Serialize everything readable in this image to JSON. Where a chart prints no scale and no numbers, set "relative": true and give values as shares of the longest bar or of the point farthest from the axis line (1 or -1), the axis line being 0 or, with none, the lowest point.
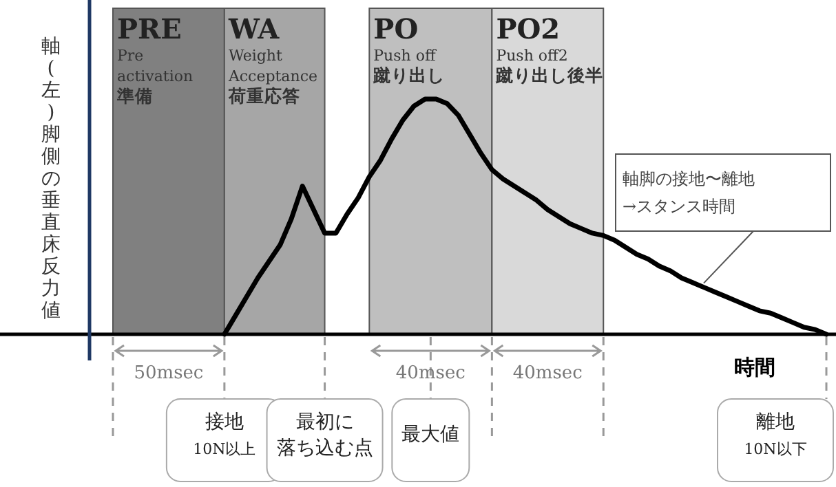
{
  "chart_data": {
    "type": "line",
    "relative": true,
    "ylabel": "軸(左)脚側の垂直床反力値",
    "xlabel": "時間",
    "categories": [
      null,
      null,
      null,
      null,
      null,
      null,
      null,
      null,
      null,
      null,
      null,
      null,
      null,
      null,
      null,
      null,
      null,
      null,
      null,
      null,
      null,
      null,
      null,
      null,
      null,
      null,
      null,
      null,
      null,
      null,
      null,
      null,
      null,
      null,
      null,
      null,
      null,
      null,
      null,
      null,
      null,
      null,
      null,
      null,
      null,
      null,
      null,
      null,
      null,
      null,
      null,
      null,
      null,
      null,
      null,
      null,
      null,
      null,
      null,
      null,
      null,
      null,
      null,
      null,
      null
    ],
    "series": [
      {
        "color": "#000000",
        "values": [
          null,
          null,
          null,
          null,
          null,
          null,
          null,
          null,
          null,
          null,
          0,
          0.08,
          0.16,
          0.24,
          0.31,
          0.38,
          0.49,
          0.63,
          0.53,
          0.43,
          0.43,
          0.51,
          0.58,
          0.67,
          0.74,
          0.83,
          0.91,
          0.97,
          1,
          1,
          0.98,
          0.93,
          0.85,
          0.77,
          0.7,
          0.66,
          0.63,
          0.6,
          0.57,
          0.53,
          0.5,
          0.47,
          0.45,
          0.43,
          0.42,
          0.4,
          0.37,
          0.34,
          0.32,
          0.29,
          0.27,
          0.24,
          0.22,
          0.2,
          0.18,
          0.16,
          0.14,
          0.12,
          0.1,
          0.09,
          0.07,
          0.05,
          0.03,
          0.02,
          0
        ]
      }
    ],
    "annotations": [
      "PRE\nPre\nactivation\n準備",
      "WA\nWeight\nAcceptance\n荷重応答",
      "PO\nPush off\n蹴り出し",
      "PO2\nPush off2\n蹴り出し後半",
      "50msec",
      "40msec",
      "40msec",
      "接地\n10N以上",
      "最初に落ち込む点",
      "最大値",
      "離地\n10N以下",
      "軸脚の接地〜離地\n→スタンス時間"
    ]
  }
}
